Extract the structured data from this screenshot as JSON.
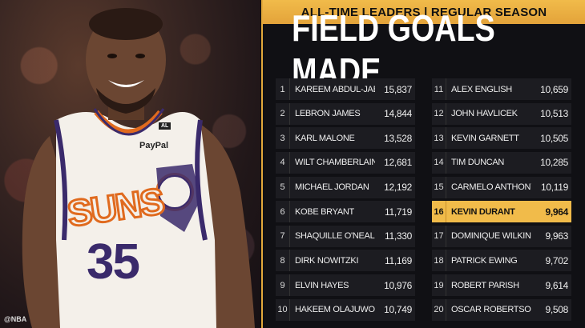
{
  "header": {
    "banner": "ALL-TIME LEADERS | REGULAR SEASON",
    "title": "FIELD GOALS MADE"
  },
  "photo": {
    "watermark": "@NBA",
    "jersey_text": "SUNS",
    "jersey_number": "35",
    "sponsor": "PayPal",
    "patch": "AL"
  },
  "colors": {
    "accent": "#f1bb4a",
    "panel": "#101014",
    "row": "#1c1c21"
  },
  "leaders_left": [
    {
      "rank": "1",
      "name": "KAREEM ABDUL-JABBAR",
      "value": "15,837"
    },
    {
      "rank": "2",
      "name": "LEBRON JAMES",
      "value": "14,844"
    },
    {
      "rank": "3",
      "name": "KARL MALONE",
      "value": "13,528"
    },
    {
      "rank": "4",
      "name": "WILT CHAMBERLAIN",
      "value": "12,681"
    },
    {
      "rank": "5",
      "name": "MICHAEL JORDAN",
      "value": "12,192"
    },
    {
      "rank": "6",
      "name": "KOBE BRYANT",
      "value": "11,719"
    },
    {
      "rank": "7",
      "name": "SHAQUILLE O'NEAL",
      "value": "11,330"
    },
    {
      "rank": "8",
      "name": "DIRK NOWITZKI",
      "value": "11,169"
    },
    {
      "rank": "9",
      "name": "ELVIN HAYES",
      "value": "10,976"
    },
    {
      "rank": "10",
      "name": "HAKEEM OLAJUWON",
      "value": "10,749"
    }
  ],
  "leaders_right": [
    {
      "rank": "11",
      "name": "ALEX ENGLISH",
      "value": "10,659"
    },
    {
      "rank": "12",
      "name": "JOHN HAVLICEK",
      "value": "10,513"
    },
    {
      "rank": "13",
      "name": "KEVIN GARNETT",
      "value": "10,505"
    },
    {
      "rank": "14",
      "name": "TIM DUNCAN",
      "value": "10,285"
    },
    {
      "rank": "15",
      "name": "CARMELO ANTHONY",
      "value": "10,119"
    },
    {
      "rank": "16",
      "name": "KEVIN DURANT",
      "value": "9,964",
      "highlight": true
    },
    {
      "rank": "17",
      "name": "DOMINIQUE WILKINS",
      "value": "9,963"
    },
    {
      "rank": "18",
      "name": "PATRICK EWING",
      "value": "9,702"
    },
    {
      "rank": "19",
      "name": "ROBERT PARISH",
      "value": "9,614"
    },
    {
      "rank": "20",
      "name": "OSCAR ROBERTSON",
      "value": "9,508"
    }
  ]
}
